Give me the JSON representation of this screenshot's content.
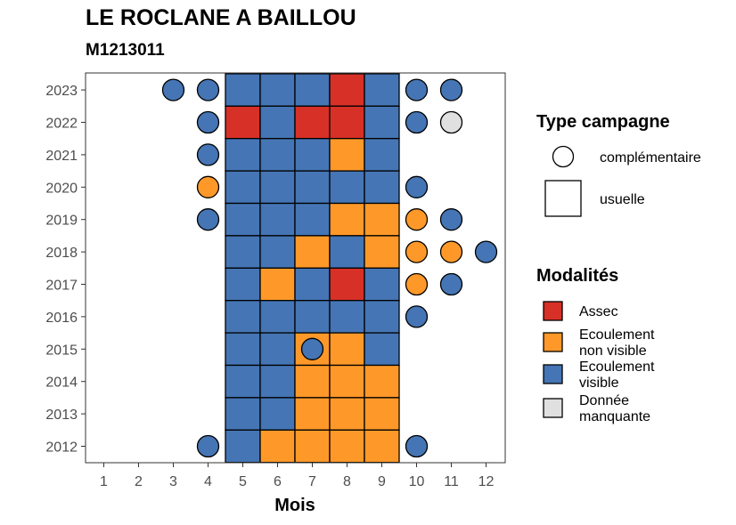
{
  "chart_data": {
    "type": "heatmap",
    "title": "LE ROCLANE A BAILLOU",
    "subtitle": "M1213011",
    "xlabel": "Mois",
    "ylabel": "",
    "x_ticks": [
      1,
      2,
      3,
      4,
      5,
      6,
      7,
      8,
      9,
      10,
      11,
      12
    ],
    "y_ticks": [
      2012,
      2013,
      2014,
      2015,
      2016,
      2017,
      2018,
      2019,
      2020,
      2021,
      2022,
      2023
    ],
    "xlim": [
      0.5,
      12.5
    ],
    "ylim": [
      2011.5,
      2023.5
    ],
    "grid": false,
    "colors": {
      "Assec": "#d73027",
      "Ecoulement non visible": "#fe9929",
      "Ecoulement visible": "#4575b4",
      "Donnée manquante": "#e0e0e0"
    },
    "legend_campaign": {
      "title": "Type campagne",
      "items": [
        {
          "label": "complémentaire",
          "shape": "circle"
        },
        {
          "label": "usuelle",
          "shape": "square"
        }
      ]
    },
    "legend_modalites": {
      "title": "Modalités",
      "items": [
        {
          "key": "Assec",
          "lines": [
            "Assec"
          ]
        },
        {
          "key": "Ecoulement non visible",
          "lines": [
            "Ecoulement",
            "non visible"
          ]
        },
        {
          "key": "Ecoulement visible",
          "lines": [
            "Ecoulement",
            "visible"
          ]
        },
        {
          "key": "Donnée manquante",
          "lines": [
            "Donnée",
            "manquante"
          ]
        }
      ]
    },
    "usuelle": [
      {
        "year": 2023,
        "values": {
          "5": "Ecoulement visible",
          "6": "Ecoulement visible",
          "7": "Ecoulement visible",
          "8": "Assec",
          "9": "Ecoulement visible"
        }
      },
      {
        "year": 2022,
        "values": {
          "5": "Assec",
          "6": "Ecoulement visible",
          "7": "Assec",
          "8": "Assec",
          "9": "Ecoulement visible"
        }
      },
      {
        "year": 2021,
        "values": {
          "5": "Ecoulement visible",
          "6": "Ecoulement visible",
          "7": "Ecoulement visible",
          "8": "Ecoulement non visible",
          "9": "Ecoulement visible"
        }
      },
      {
        "year": 2020,
        "values": {
          "5": "Ecoulement visible",
          "6": "Ecoulement visible",
          "7": "Ecoulement visible",
          "8": "Ecoulement visible",
          "9": "Ecoulement visible"
        }
      },
      {
        "year": 2019,
        "values": {
          "5": "Ecoulement visible",
          "6": "Ecoulement visible",
          "7": "Ecoulement visible",
          "8": "Ecoulement non visible",
          "9": "Ecoulement non visible"
        }
      },
      {
        "year": 2018,
        "values": {
          "5": "Ecoulement visible",
          "6": "Ecoulement visible",
          "7": "Ecoulement non visible",
          "8": "Ecoulement visible",
          "9": "Ecoulement non visible"
        }
      },
      {
        "year": 2017,
        "values": {
          "5": "Ecoulement visible",
          "6": "Ecoulement non visible",
          "7": "Ecoulement visible",
          "8": "Assec",
          "9": "Ecoulement visible"
        }
      },
      {
        "year": 2016,
        "values": {
          "5": "Ecoulement visible",
          "6": "Ecoulement visible",
          "7": "Ecoulement visible",
          "8": "Ecoulement visible",
          "9": "Ecoulement visible"
        }
      },
      {
        "year": 2015,
        "values": {
          "5": "Ecoulement visible",
          "6": "Ecoulement visible",
          "7": "Ecoulement non visible",
          "8": "Ecoulement non visible",
          "9": "Ecoulement visible"
        }
      },
      {
        "year": 2014,
        "values": {
          "5": "Ecoulement visible",
          "6": "Ecoulement visible",
          "7": "Ecoulement non visible",
          "8": "Ecoulement non visible",
          "9": "Ecoulement non visible"
        }
      },
      {
        "year": 2013,
        "values": {
          "5": "Ecoulement visible",
          "6": "Ecoulement visible",
          "7": "Ecoulement non visible",
          "8": "Ecoulement non visible",
          "9": "Ecoulement non visible"
        }
      },
      {
        "year": 2012,
        "values": {
          "5": "Ecoulement visible",
          "6": "Ecoulement non visible",
          "7": "Ecoulement non visible",
          "8": "Ecoulement non visible",
          "9": "Ecoulement non visible"
        }
      }
    ],
    "complementaire": [
      {
        "year": 2023,
        "month": 3,
        "value": "Ecoulement visible"
      },
      {
        "year": 2023,
        "month": 4,
        "value": "Ecoulement visible"
      },
      {
        "year": 2023,
        "month": 10,
        "value": "Ecoulement visible"
      },
      {
        "year": 2023,
        "month": 11,
        "value": "Ecoulement visible"
      },
      {
        "year": 2022,
        "month": 4,
        "value": "Ecoulement visible"
      },
      {
        "year": 2022,
        "month": 10,
        "value": "Ecoulement visible"
      },
      {
        "year": 2022,
        "month": 11,
        "value": "Donnée manquante"
      },
      {
        "year": 2021,
        "month": 4,
        "value": "Ecoulement visible"
      },
      {
        "year": 2020,
        "month": 4,
        "value": "Ecoulement non visible"
      },
      {
        "year": 2020,
        "month": 10,
        "value": "Ecoulement visible"
      },
      {
        "year": 2019,
        "month": 4,
        "value": "Ecoulement visible"
      },
      {
        "year": 2019,
        "month": 10,
        "value": "Ecoulement non visible"
      },
      {
        "year": 2019,
        "month": 11,
        "value": "Ecoulement visible"
      },
      {
        "year": 2018,
        "month": 10,
        "value": "Ecoulement non visible"
      },
      {
        "year": 2018,
        "month": 11,
        "value": "Ecoulement non visible"
      },
      {
        "year": 2018,
        "month": 12,
        "value": "Ecoulement visible"
      },
      {
        "year": 2017,
        "month": 10,
        "value": "Ecoulement non visible"
      },
      {
        "year": 2017,
        "month": 11,
        "value": "Ecoulement visible"
      },
      {
        "year": 2016,
        "month": 10,
        "value": "Ecoulement visible"
      },
      {
        "year": 2015,
        "month": 7,
        "value": "Ecoulement visible"
      },
      {
        "year": 2012,
        "month": 4,
        "value": "Ecoulement visible"
      },
      {
        "year": 2012,
        "month": 10,
        "value": "Ecoulement visible"
      }
    ]
  }
}
